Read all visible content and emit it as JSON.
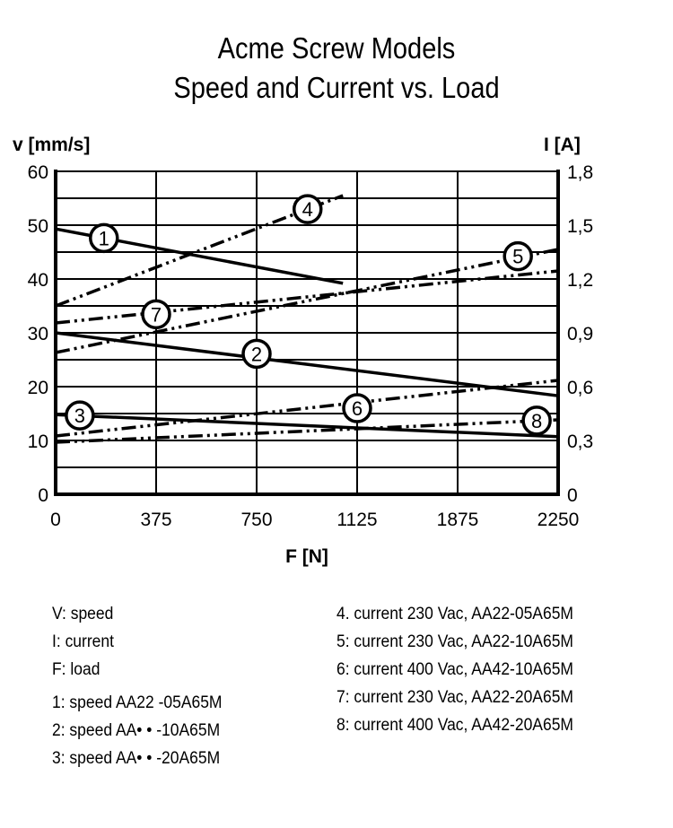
{
  "chart_data": {
    "type": "line",
    "title": [
      "Acme Screw Models",
      "Speed and Current vs. Load"
    ],
    "xlabel": "F [N]",
    "ylabel_left": "v [mm/s]",
    "ylabel_right": "I [A]",
    "x_ticks": [
      "0",
      "375",
      "750",
      "1125",
      "1875",
      "2250"
    ],
    "y_left_ticks": [
      "0",
      "10",
      "20",
      "30",
      "40",
      "50",
      "60"
    ],
    "y_right_ticks": [
      "0",
      "0,3",
      "0,6",
      "0,9",
      "1,2",
      "1,5",
      "1,8"
    ],
    "ylim_left": [
      0,
      60
    ],
    "ylim_right": [
      0,
      1.8
    ],
    "grid": true,
    "series": [
      {
        "name": "1",
        "axis": "left",
        "style": "solid",
        "x": [
          0,
          1072
        ],
        "y": [
          49.3,
          39.2
        ],
        "label_x": 180
      },
      {
        "name": "2",
        "axis": "left",
        "style": "solid",
        "x": [
          0,
          2250
        ],
        "y": [
          30,
          18.3
        ],
        "label_x": 750
      },
      {
        "name": "3",
        "axis": "left",
        "style": "solid",
        "x": [
          0,
          2250
        ],
        "y": [
          14.8,
          10.7
        ],
        "label_x": 90
      },
      {
        "name": "4",
        "axis": "right",
        "style": "dashdotdot",
        "x": [
          0,
          1072
        ],
        "y": [
          1.05,
          1.665
        ],
        "label_x": 940
      },
      {
        "name": "5",
        "axis": "right",
        "style": "dashdotdot",
        "x": [
          0,
          2250
        ],
        "y": [
          0.79,
          1.365
        ],
        "label_x": 2100
      },
      {
        "name": "6",
        "axis": "right",
        "style": "dashdotdot",
        "x": [
          0,
          2250
        ],
        "y": [
          0.325,
          0.635
        ],
        "label_x": 1125
      },
      {
        "name": "7",
        "axis": "right",
        "style": "dashdotdot",
        "x": [
          0,
          2250
        ],
        "y": [
          0.955,
          1.245
        ],
        "label_x": 375
      },
      {
        "name": "8",
        "axis": "right",
        "style": "dashdotdot",
        "x": [
          0,
          2250
        ],
        "y": [
          0.29,
          0.415
        ],
        "label_x": 2170
      }
    ]
  },
  "legend": {
    "left": [
      "V: speed",
      "I: current",
      "F: load",
      "1: speed AA22 -05A65M",
      "2: speed AA• • -10A65M",
      "3: speed AA• • -20A65M"
    ],
    "right": [
      "4. current 230 Vac, AA22-05A65M",
      "5: current 230 Vac, AA22-10A65M",
      "6: current 400 Vac, AA42-10A65M",
      "7: current 230 Vac, AA22-20A65M",
      "8: current 400 Vac, AA42-20A65M"
    ]
  }
}
